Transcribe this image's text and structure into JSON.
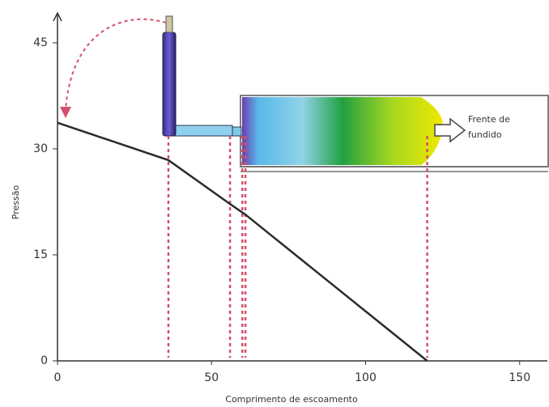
{
  "chart_data": {
    "type": "line",
    "x": [
      0,
      36,
      56,
      61,
      120
    ],
    "values": [
      33.7,
      28.4,
      22.2,
      20.7,
      0
    ],
    "color": "#2a2a2a",
    "reference_x": [
      36,
      56,
      60,
      61,
      120
    ],
    "reference_color": "#d0506a",
    "xlim": [
      0,
      159
    ],
    "ylim": [
      0,
      49
    ],
    "xticks": [
      0,
      50,
      100,
      150
    ],
    "yticks": [
      0,
      15,
      30,
      45
    ],
    "xlabel": "Comprimento de escoamento",
    "ylabel": "Pressão",
    "annotation": [
      "Frente de",
      "fundido"
    ]
  }
}
